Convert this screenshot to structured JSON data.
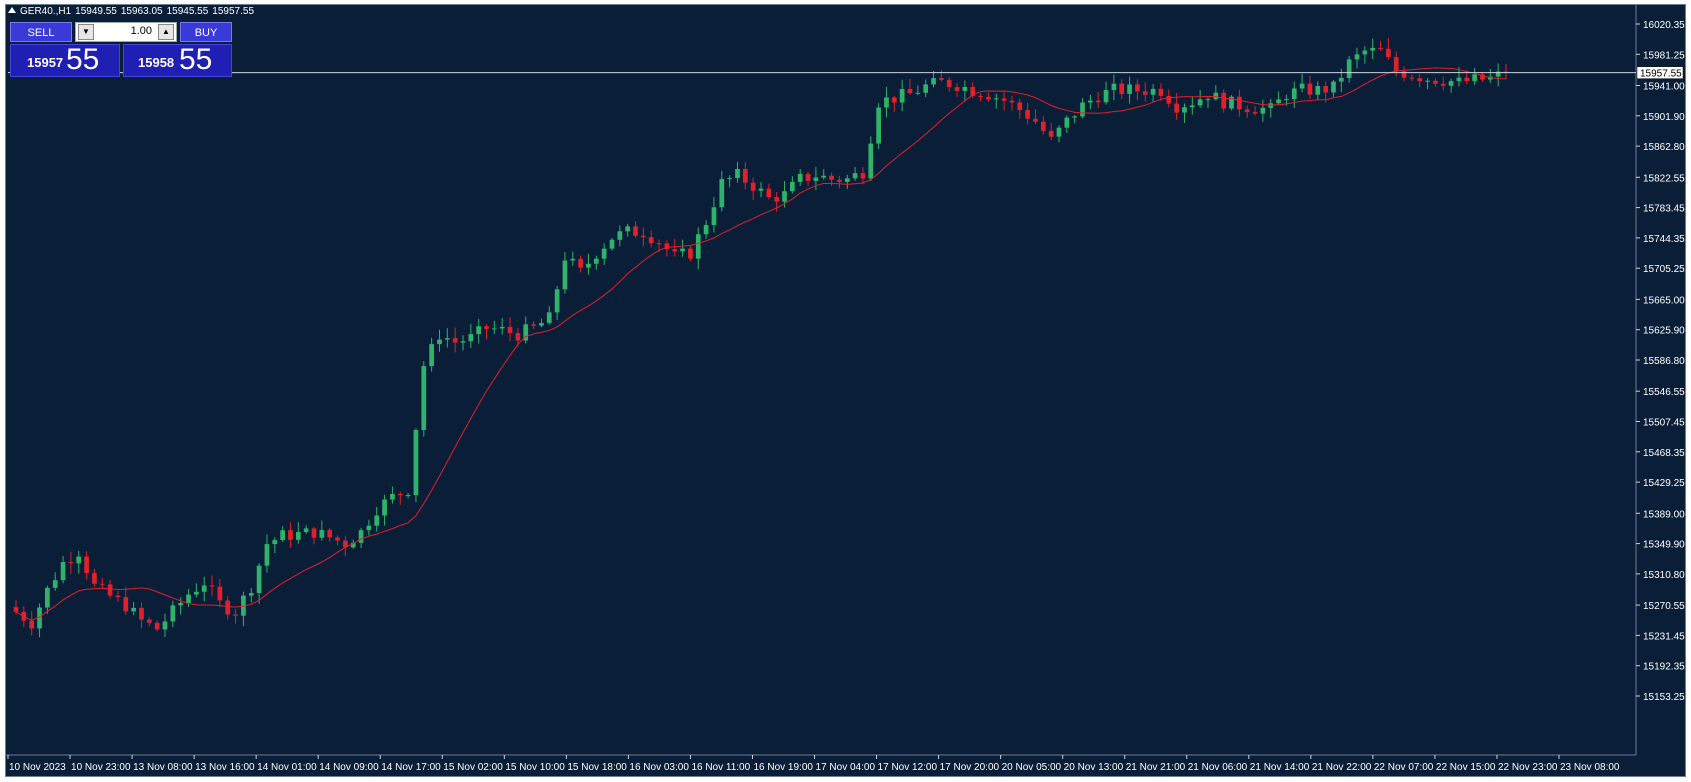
{
  "header": {
    "symbol": "GER40.,H1",
    "open": "15949.55",
    "high": "15963.05",
    "low": "15945.55",
    "close": "15957.55"
  },
  "trade_panel": {
    "sell_label": "SELL",
    "buy_label": "BUY",
    "lot": "1.00",
    "sell_price_main": "15957",
    "sell_price_big": "55",
    "buy_price_main": "15958",
    "buy_price_big": "55"
  },
  "colors": {
    "background": "#0b1e38",
    "bull": "#2fb36b",
    "bear": "#e0202a",
    "ma": "#e0202a",
    "text": "#ffffff",
    "price_line": "#c9d3de"
  },
  "chart_data": {
    "type": "candlestick",
    "symbol": "GER40.",
    "timeframe": "H1",
    "current_price": "15957.55",
    "ylim": [
      15153.25,
      16020.35
    ],
    "y_ticks": [
      "16020.35",
      "15981.25",
      "15941.00",
      "15901.90",
      "15862.80",
      "15822.55",
      "15783.45",
      "15744.35",
      "15705.25",
      "15665.00",
      "15625.90",
      "15586.80",
      "15546.55",
      "15507.45",
      "15468.35",
      "15429.25",
      "15389.00",
      "15349.90",
      "15310.80",
      "15270.55",
      "15231.45",
      "15192.35",
      "15153.25"
    ],
    "x_ticks": [
      "10 Nov 2023",
      "10 Nov 23:00",
      "13 Nov 08:00",
      "13 Nov 16:00",
      "14 Nov 01:00",
      "14 Nov 09:00",
      "14 Nov 17:00",
      "15 Nov 02:00",
      "15 Nov 10:00",
      "15 Nov 18:00",
      "16 Nov 03:00",
      "16 Nov 11:00",
      "16 Nov 19:00",
      "17 Nov 04:00",
      "17 Nov 12:00",
      "17 Nov 20:00",
      "20 Nov 05:00",
      "20 Nov 13:00",
      "21 Nov 21:00",
      "21 Nov 06:00",
      "21 Nov 14:00",
      "21 Nov 22:00",
      "22 Nov 07:00",
      "22 Nov 15:00",
      "22 Nov 23:00",
      "23 Nov 08:00"
    ],
    "series_close_anchors": [
      [
        0,
        15262
      ],
      [
        2,
        15248
      ],
      [
        4,
        15290
      ],
      [
        6,
        15325
      ],
      [
        8,
        15340
      ],
      [
        10,
        15295
      ],
      [
        12,
        15282
      ],
      [
        14,
        15270
      ],
      [
        16,
        15250
      ],
      [
        18,
        15240
      ],
      [
        20,
        15262
      ],
      [
        22,
        15285
      ],
      [
        24,
        15300
      ],
      [
        26,
        15272
      ],
      [
        28,
        15262
      ],
      [
        30,
        15295
      ],
      [
        32,
        15350
      ],
      [
        34,
        15360
      ],
      [
        36,
        15362
      ],
      [
        38,
        15365
      ],
      [
        40,
        15358
      ],
      [
        42,
        15350
      ],
      [
        44,
        15365
      ],
      [
        46,
        15395
      ],
      [
        48,
        15410
      ],
      [
        50,
        15420
      ],
      [
        52,
        15580
      ],
      [
        54,
        15620
      ],
      [
        56,
        15610
      ],
      [
        58,
        15615
      ],
      [
        60,
        15628
      ],
      [
        62,
        15625
      ],
      [
        64,
        15620
      ],
      [
        66,
        15628
      ],
      [
        68,
        15640
      ],
      [
        70,
        15720
      ],
      [
        72,
        15700
      ],
      [
        74,
        15725
      ],
      [
        76,
        15745
      ],
      [
        78,
        15752
      ],
      [
        80,
        15752
      ],
      [
        82,
        15740
      ],
      [
        84,
        15720
      ],
      [
        86,
        15725
      ],
      [
        88,
        15765
      ],
      [
        90,
        15815
      ],
      [
        92,
        15825
      ],
      [
        94,
        15812
      ],
      [
        96,
        15795
      ],
      [
        98,
        15800
      ],
      [
        100,
        15820
      ],
      [
        102,
        15825
      ],
      [
        104,
        15820
      ],
      [
        106,
        15820
      ],
      [
        108,
        15830
      ],
      [
        110,
        15920
      ],
      [
        112,
        15925
      ],
      [
        114,
        15930
      ],
      [
        116,
        15940
      ],
      [
        118,
        15945
      ],
      [
        120,
        15942
      ],
      [
        122,
        15935
      ],
      [
        124,
        15930
      ],
      [
        126,
        15922
      ],
      [
        128,
        15910
      ],
      [
        130,
        15895
      ],
      [
        132,
        15870
      ],
      [
        134,
        15895
      ],
      [
        136,
        15915
      ],
      [
        138,
        15928
      ],
      [
        140,
        15935
      ],
      [
        142,
        15935
      ],
      [
        144,
        15935
      ],
      [
        146,
        15935
      ],
      [
        148,
        15915
      ],
      [
        150,
        15920
      ],
      [
        152,
        15930
      ],
      [
        154,
        15920
      ],
      [
        156,
        15915
      ],
      [
        158,
        15912
      ],
      [
        160,
        15910
      ],
      [
        162,
        15930
      ],
      [
        164,
        15935
      ],
      [
        166,
        15935
      ],
      [
        168,
        15938
      ],
      [
        170,
        15970
      ],
      [
        172,
        15985
      ],
      [
        174,
        15985
      ],
      [
        176,
        15960
      ],
      [
        178,
        15955
      ],
      [
        180,
        15950
      ],
      [
        182,
        15948
      ],
      [
        184,
        15945
      ],
      [
        186,
        15948
      ],
      [
        188,
        15950
      ],
      [
        190,
        15957.55
      ]
    ],
    "moving_average": "red line"
  }
}
